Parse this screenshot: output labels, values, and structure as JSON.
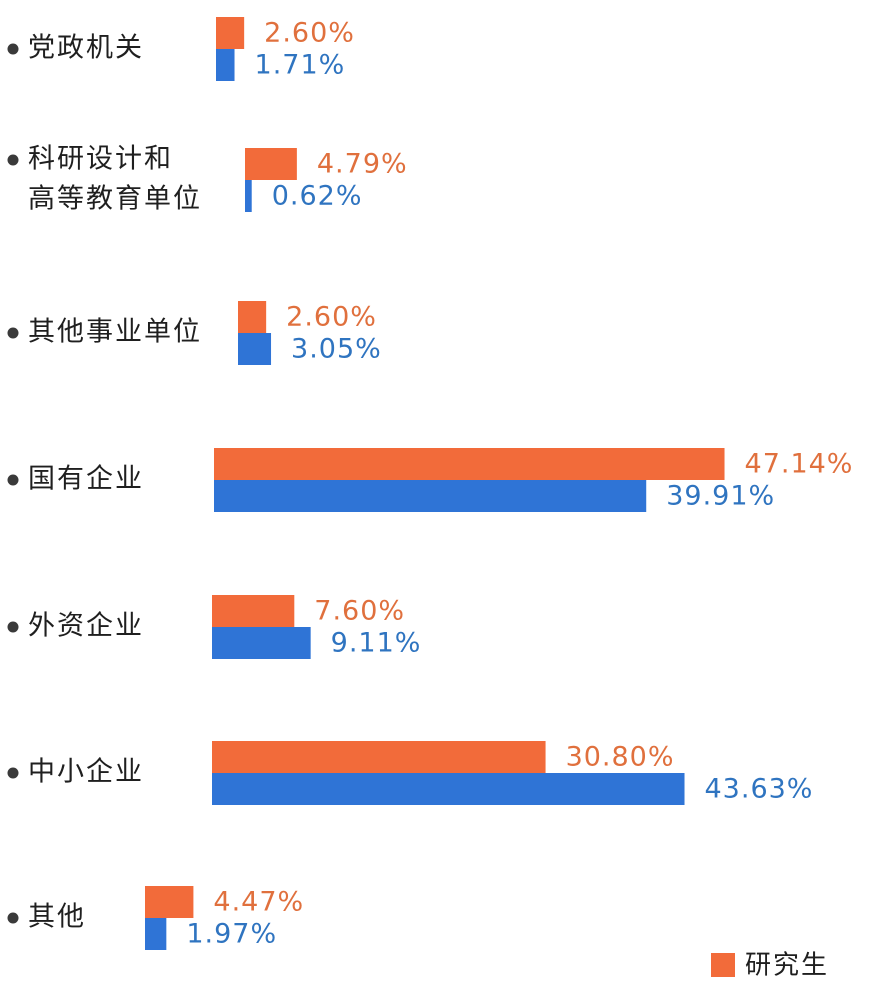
{
  "chart_data": {
    "type": "bar",
    "orientation": "horizontal",
    "categories": [
      [
        "党政机关"
      ],
      [
        "科研设计和",
        "高等教育单位"
      ],
      [
        "其他事业单位"
      ],
      [
        "国有企业"
      ],
      [
        "外资企业"
      ],
      [
        "中小企业"
      ],
      [
        "其他"
      ]
    ],
    "series": [
      {
        "name": "研究生",
        "color": "#f26b3a",
        "label_color": "#e0703d",
        "values": [
          2.6,
          4.79,
          2.6,
          47.14,
          7.6,
          30.8,
          4.47
        ],
        "labels": [
          "2.60%",
          "4.79%",
          "2.60%",
          "47.14%",
          "7.60%",
          "30.80%",
          "4.47%"
        ]
      },
      {
        "color": "#2f74d6",
        "label_color": "#2f74c0",
        "values": [
          1.71,
          0.62,
          3.05,
          39.91,
          9.11,
          43.63,
          1.97
        ],
        "labels": [
          "1.71%",
          "0.62%",
          "3.05%",
          "39.91%",
          "9.11%",
          "43.63%",
          "1.97%"
        ]
      }
    ],
    "legend": {
      "position": "bottom-right",
      "entries": [
        "研究生"
      ]
    },
    "grid": false
  }
}
